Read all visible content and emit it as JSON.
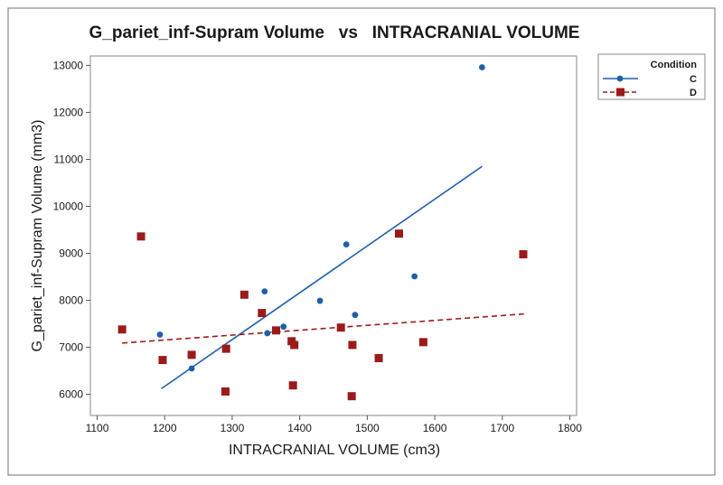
{
  "chart_data": {
    "type": "scatter",
    "title": "G_pariet_inf-Supram Volume   vs   INTRACRANIAL VOLUME",
    "xlabel": "INTRACRANIAL VOLUME (cm3)",
    "ylabel": "G_pariet_inf-Supram Volume (mm3)",
    "xlim": [
      1090,
      1810
    ],
    "ylim": [
      5550,
      13200
    ],
    "xticks": [
      1100,
      1200,
      1300,
      1400,
      1500,
      1600,
      1700,
      1800
    ],
    "yticks": [
      6000,
      7000,
      8000,
      9000,
      10000,
      11000,
      12000,
      13000
    ],
    "grid": false,
    "legend": {
      "title": "Condition",
      "placement": "right-outside-top"
    },
    "series": [
      {
        "name": "C",
        "color": "#1f5faa",
        "marker": "circle",
        "fit_line": "solid",
        "fit": {
          "x": [
            1195,
            1670
          ],
          "y": [
            6120,
            10850
          ]
        },
        "points": [
          {
            "x": 1193,
            "y": 7270
          },
          {
            "x": 1240,
            "y": 6550
          },
          {
            "x": 1348,
            "y": 8190
          },
          {
            "x": 1352,
            "y": 7300
          },
          {
            "x": 1376,
            "y": 7440
          },
          {
            "x": 1430,
            "y": 7990
          },
          {
            "x": 1469,
            "y": 9190
          },
          {
            "x": 1482,
            "y": 7690
          },
          {
            "x": 1570,
            "y": 8510
          },
          {
            "x": 1670,
            "y": 12960
          }
        ]
      },
      {
        "name": "D",
        "color": "#9b1b1b",
        "marker": "square",
        "fit_line": "dashed",
        "fit": {
          "x": [
            1137,
            1732
          ],
          "y": [
            7090,
            7710
          ]
        },
        "points": [
          {
            "x": 1137,
            "y": 7380
          },
          {
            "x": 1165,
            "y": 9360
          },
          {
            "x": 1197,
            "y": 6730
          },
          {
            "x": 1240,
            "y": 6840
          },
          {
            "x": 1290,
            "y": 6060
          },
          {
            "x": 1291,
            "y": 6970
          },
          {
            "x": 1318,
            "y": 8120
          },
          {
            "x": 1344,
            "y": 7730
          },
          {
            "x": 1365,
            "y": 7360
          },
          {
            "x": 1388,
            "y": 7130
          },
          {
            "x": 1390,
            "y": 6190
          },
          {
            "x": 1392,
            "y": 7050
          },
          {
            "x": 1461,
            "y": 7420
          },
          {
            "x": 1477,
            "y": 5960
          },
          {
            "x": 1478,
            "y": 7050
          },
          {
            "x": 1517,
            "y": 6770
          },
          {
            "x": 1547,
            "y": 9420
          },
          {
            "x": 1583,
            "y": 7110
          },
          {
            "x": 1731,
            "y": 8980
          }
        ]
      }
    ]
  }
}
